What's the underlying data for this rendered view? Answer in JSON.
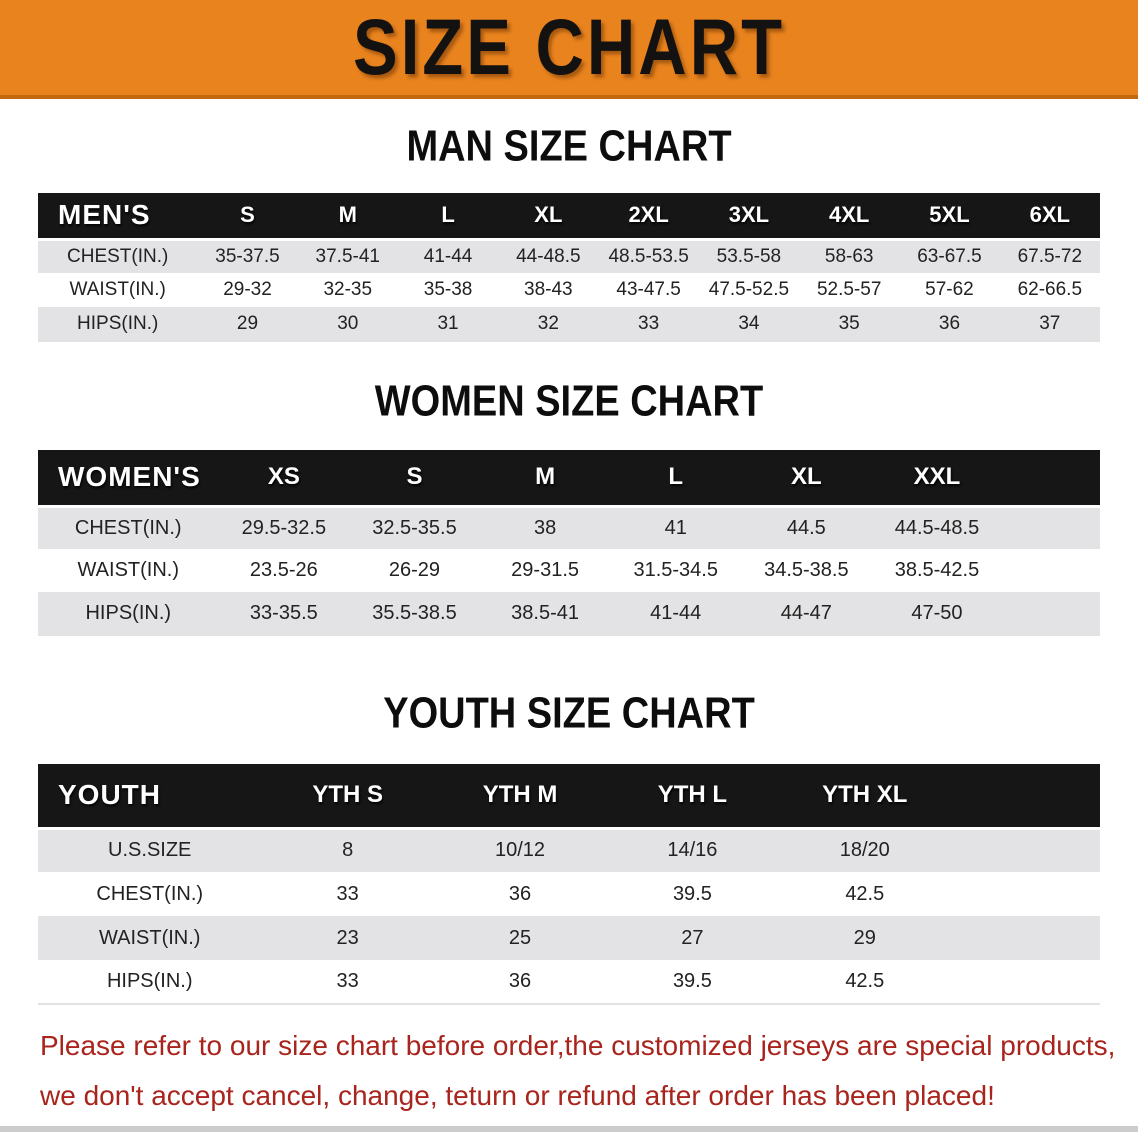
{
  "banner": {
    "title": "SIZE CHART"
  },
  "sections": [
    {
      "id": "men",
      "heading": "MAN SIZE CHART",
      "table": {
        "header_label": "MEN'S",
        "columns": [
          "S",
          "M",
          "L",
          "XL",
          "2XL",
          "3XL",
          "4XL",
          "5XL",
          "6XL"
        ],
        "rows": [
          {
            "label": "CHEST(IN.)",
            "values": [
              "35-37.5",
              "37.5-41",
              "41-44",
              "44-48.5",
              "48.5-53.5",
              "53.5-58",
              "58-63",
              "63-67.5",
              "67.5-72"
            ]
          },
          {
            "label": "WAIST(IN.)",
            "values": [
              "29-32",
              "32-35",
              "35-38",
              "38-43",
              "43-47.5",
              "47.5-52.5",
              "52.5-57",
              "57-62",
              "62-66.5"
            ]
          },
          {
            "label": "HIPS(IN.)",
            "values": [
              "29",
              "30",
              "31",
              "32",
              "33",
              "34",
              "35",
              "36",
              "37"
            ]
          }
        ]
      }
    },
    {
      "id": "women",
      "heading": "WOMEN SIZE CHART",
      "table": {
        "header_label": "WOMEN'S",
        "columns": [
          "XS",
          "S",
          "M",
          "L",
          "XL",
          "XXL"
        ],
        "rows": [
          {
            "label": "CHEST(IN.)",
            "values": [
              "29.5-32.5",
              "32.5-35.5",
              "38",
              "41",
              "44.5",
              "44.5-48.5"
            ]
          },
          {
            "label": "WAIST(IN.)",
            "values": [
              "23.5-26",
              "26-29",
              "29-31.5",
              "31.5-34.5",
              "34.5-38.5",
              "38.5-42.5"
            ]
          },
          {
            "label": "HIPS(IN.)",
            "values": [
              "33-35.5",
              "35.5-38.5",
              "38.5-41",
              "41-44",
              "44-47",
              "47-50"
            ]
          }
        ]
      }
    },
    {
      "id": "youth",
      "heading": "YOUTH SIZE CHART",
      "table": {
        "header_label": "YOUTH",
        "columns": [
          "YTH S",
          "YTH M",
          "YTH L",
          "YTH XL"
        ],
        "rows": [
          {
            "label": "U.S.SIZE",
            "values": [
              "8",
              "10/12",
              "14/16",
              "18/20"
            ]
          },
          {
            "label": "CHEST(IN.)",
            "values": [
              "33",
              "36",
              "39.5",
              "42.5"
            ]
          },
          {
            "label": "WAIST(IN.)",
            "values": [
              "23",
              "25",
              "27",
              "29"
            ]
          },
          {
            "label": "HIPS(IN.)",
            "values": [
              "33",
              "36",
              "39.5",
              "42.5"
            ]
          }
        ]
      }
    }
  ],
  "footer": {
    "line1": "Please refer to our size chart before order,the customized jerseys are special products,",
    "line2": "we don't accept cancel, change, teturn or refund after order has been placed!"
  },
  "colors": {
    "banner_bg": "#E8831E",
    "banner_edge": "#C2690F",
    "header_bar": "#161616",
    "header_text": "#FFFFFF",
    "row_stripe": "#E3E3E5",
    "body_text": "#222222",
    "disclaimer_red": "#A8241C",
    "page_bottom_edge": "#CCCCCC"
  }
}
